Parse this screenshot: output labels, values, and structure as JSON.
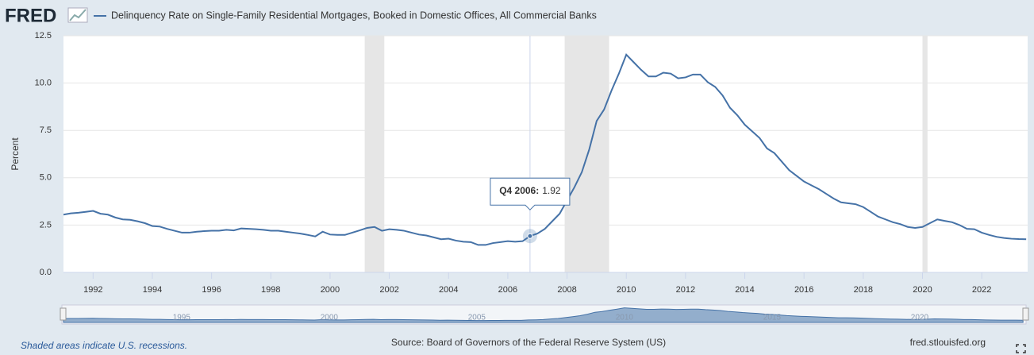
{
  "brand": "FRED",
  "chart_data": {
    "type": "line",
    "title": "Delinquency Rate on Single-Family Residential Mortgages, Booked in Domestic Offices, All Commercial Banks",
    "y_label": "Percent",
    "x": [
      1991,
      1991.25,
      1991.5,
      1991.75,
      1992,
      1992.25,
      1992.5,
      1992.75,
      1993,
      1993.25,
      1993.5,
      1993.75,
      1994,
      1994.25,
      1994.5,
      1994.75,
      1995,
      1995.25,
      1995.5,
      1995.75,
      1996,
      1996.25,
      1996.5,
      1996.75,
      1997,
      1997.25,
      1997.5,
      1997.75,
      1998,
      1998.25,
      1998.5,
      1998.75,
      1999,
      1999.25,
      1999.5,
      1999.75,
      2000,
      2000.25,
      2000.5,
      2000.75,
      2001,
      2001.25,
      2001.5,
      2001.75,
      2002,
      2002.25,
      2002.5,
      2002.75,
      2003,
      2003.25,
      2003.5,
      2003.75,
      2004,
      2004.25,
      2004.5,
      2004.75,
      2005,
      2005.25,
      2005.5,
      2005.75,
      2006,
      2006.25,
      2006.5,
      2006.75,
      2007,
      2007.25,
      2007.5,
      2007.75,
      2008,
      2008.25,
      2008.5,
      2008.75,
      2009,
      2009.25,
      2009.5,
      2009.75,
      2010,
      2010.25,
      2010.5,
      2010.75,
      2011,
      2011.25,
      2011.5,
      2011.75,
      2012,
      2012.25,
      2012.5,
      2012.75,
      2013,
      2013.25,
      2013.5,
      2013.75,
      2014,
      2014.25,
      2014.5,
      2014.75,
      2015,
      2015.25,
      2015.5,
      2015.75,
      2016,
      2016.25,
      2016.5,
      2016.75,
      2017,
      2017.25,
      2017.5,
      2017.75,
      2018,
      2018.25,
      2018.5,
      2018.75,
      2019,
      2019.25,
      2019.5,
      2019.75,
      2020,
      2020.25,
      2020.5,
      2020.75,
      2021,
      2021.25,
      2021.5,
      2021.75,
      2022,
      2022.25,
      2022.5,
      2022.75,
      2023,
      2023.25,
      2023.5
    ],
    "series": [
      {
        "name": "Delinquency Rate on Single-Family Residential Mortgages, Booked in Domestic Offices, All Commercial Banks",
        "color": "#4572a7",
        "values": [
          3.05,
          3.12,
          3.15,
          3.2,
          3.25,
          3.1,
          3.05,
          2.9,
          2.8,
          2.78,
          2.7,
          2.6,
          2.45,
          2.42,
          2.3,
          2.2,
          2.1,
          2.1,
          2.15,
          2.18,
          2.2,
          2.2,
          2.25,
          2.22,
          2.32,
          2.3,
          2.28,
          2.25,
          2.2,
          2.2,
          2.15,
          2.1,
          2.05,
          1.98,
          1.9,
          2.15,
          2.0,
          1.98,
          1.98,
          2.1,
          2.22,
          2.35,
          2.4,
          2.2,
          2.28,
          2.25,
          2.2,
          2.1,
          2.0,
          1.95,
          1.85,
          1.75,
          1.78,
          1.68,
          1.62,
          1.6,
          1.45,
          1.45,
          1.55,
          1.6,
          1.65,
          1.62,
          1.65,
          1.92,
          2.05,
          2.3,
          2.7,
          3.1,
          3.8,
          4.5,
          5.3,
          6.5,
          8.0,
          8.6,
          9.6,
          10.5,
          11.5,
          11.1,
          10.7,
          10.35,
          10.35,
          10.55,
          10.5,
          10.25,
          10.3,
          10.45,
          10.45,
          10.05,
          9.8,
          9.35,
          8.7,
          8.3,
          7.8,
          7.45,
          7.1,
          6.55,
          6.3,
          5.85,
          5.4,
          5.1,
          4.8,
          4.6,
          4.4,
          4.15,
          3.9,
          3.7,
          3.65,
          3.6,
          3.45,
          3.2,
          2.95,
          2.8,
          2.65,
          2.55,
          2.4,
          2.35,
          2.4,
          2.6,
          2.8,
          2.72,
          2.65,
          2.5,
          2.3,
          2.28,
          2.1,
          1.98,
          1.88,
          1.82,
          1.78,
          1.76,
          1.75
        ]
      }
    ],
    "xlim": [
      1991,
      2023.55
    ],
    "xticks": [
      1992,
      1994,
      1996,
      1998,
      2000,
      2002,
      2004,
      2006,
      2008,
      2010,
      2012,
      2014,
      2016,
      2018,
      2020,
      2022
    ],
    "ylim": [
      0,
      12.5
    ],
    "yticks": [
      {
        "value": 0,
        "label": "0.0"
      },
      {
        "value": 2.5,
        "label": "2.5"
      },
      {
        "value": 5,
        "label": "5.0"
      },
      {
        "value": 7.5,
        "label": "7.5"
      },
      {
        "value": 10,
        "label": "10.0"
      },
      {
        "value": 12.5,
        "label": "12.5"
      }
    ],
    "grid": true,
    "recessions": [
      [
        2001.17,
        2001.83
      ],
      [
        2007.92,
        2009.42
      ],
      [
        2020.0,
        2020.17
      ]
    ],
    "recession_color": "#e6e6e6",
    "tooltip": {
      "label": "Q4 2006:",
      "index": 63
    },
    "navigator_ticks": [
      1995,
      2000,
      2005,
      2010,
      2015,
      2020
    ],
    "recession_note": "Shaded areas indicate U.S. recessions.",
    "source": "Source: Board of Governors of the Federal Reserve System (US)",
    "site": "fred.stlouisfed.org"
  }
}
